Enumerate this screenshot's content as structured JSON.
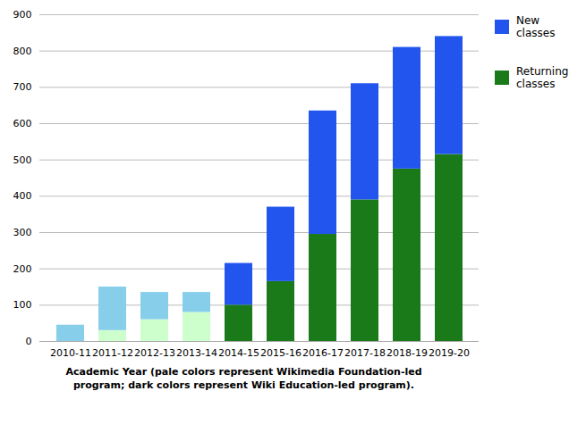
{
  "chart_data": {
    "type": "bar",
    "stacked": true,
    "categories": [
      "2010-11",
      "2011-12",
      "2012-13",
      "2013-14",
      "2014-15",
      "2015-16",
      "2016-17",
      "2017-18",
      "2018-19",
      "2019-20"
    ],
    "xlabel": "Academic Year (pale colors represent Wikimedia Foundation-led\nprogram; dark colors represent Wiki Education-led program).",
    "series": [
      {
        "name": "Returning\nclasses",
        "color": "#1a7a1a",
        "colors": [
          "#CCFFCC",
          "#CCFFCC",
          "#CCFFCC",
          "#CCFFCC",
          "#1a7a1a",
          "#1a7a1a",
          "#1a7a1a",
          "#1a7a1a",
          "#1a7a1a",
          "#1a7a1a"
        ],
        "values": [
          0,
          30,
          60,
          80,
          100,
          165,
          295,
          390,
          475,
          515
        ]
      },
      {
        "name": "New\nclasses",
        "color": "#2255EE",
        "colors": [
          "#87CEEB",
          "#87CEEB",
          "#87CEEB",
          "#87CEEB",
          "#2255EE",
          "#2255EE",
          "#2255EE",
          "#2255EE",
          "#2255EE",
          "#2255EE"
        ],
        "values": [
          45,
          120,
          75,
          55,
          115,
          205,
          340,
          320,
          335,
          325
        ]
      }
    ],
    "ylim": [
      0,
      900
    ],
    "yticks": [
      0,
      100,
      200,
      300,
      400,
      500,
      600,
      700,
      800,
      900
    ],
    "grid": true,
    "legend": "right"
  }
}
